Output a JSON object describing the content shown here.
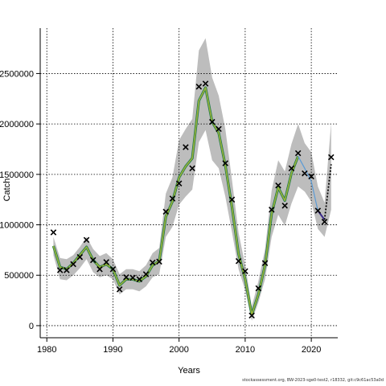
{
  "chart_data": {
    "type": "line",
    "xlabel": "Years",
    "ylabel": "Catch",
    "xlim": [
      1979,
      2024
    ],
    "ylim": [
      -120000,
      2950000
    ],
    "x_ticks": [
      1980,
      1990,
      2000,
      2010,
      2020
    ],
    "y_ticks": [
      0,
      500000,
      1000000,
      1500000,
      2000000,
      2500000
    ],
    "y_tick_labels": [
      "0",
      "500000",
      "1000000",
      "1500000",
      "2000000",
      "2500000"
    ],
    "grid": true,
    "series": [
      {
        "kind": "observed",
        "x": [
          1981,
          1982,
          1983,
          1984,
          1985,
          1986,
          1987,
          1988,
          1989,
          1990,
          1991,
          1992,
          1993,
          1994,
          1995,
          1996,
          1997,
          1998,
          1999,
          2000,
          2001,
          2002,
          2003,
          2004,
          2005,
          2006,
          2007,
          2008,
          2009,
          2010,
          2011,
          2012,
          2013,
          2014,
          2015,
          2016,
          2017,
          2018,
          2019,
          2020,
          2021,
          2022,
          2023
        ],
        "y": [
          925000,
          550000,
          550000,
          610000,
          680000,
          850000,
          650000,
          560000,
          630000,
          560000,
          360000,
          480000,
          475000,
          460000,
          510000,
          625000,
          635000,
          1130000,
          1260000,
          1410000,
          1770000,
          1560000,
          2370000,
          2400000,
          2020000,
          1950000,
          1610000,
          1250000,
          640000,
          540000,
          100000,
          370000,
          620000,
          1150000,
          1390000,
          1190000,
          1560000,
          1710000,
          1510000,
          1480000,
          1140000,
          1030000,
          1670000
        ]
      },
      {
        "kind": "fitted",
        "x": [
          1981,
          1982,
          1983,
          1984,
          1985,
          1986,
          1987,
          1988,
          1989,
          1990,
          1991,
          1992,
          1993,
          1994,
          1995,
          1996,
          1997,
          1998,
          1999,
          2000,
          2001,
          2002,
          2003,
          2004,
          2005,
          2006,
          2007,
          2008,
          2009,
          2010,
          2011,
          2012,
          2013,
          2014,
          2015,
          2016,
          2017,
          2018
        ],
        "y": [
          790000,
          580000,
          560000,
          620000,
          700000,
          780000,
          650000,
          580000,
          610000,
          560000,
          400000,
          460000,
          460000,
          440000,
          490000,
          600000,
          640000,
          1080000,
          1230000,
          1470000,
          1580000,
          1660000,
          2230000,
          2360000,
          2020000,
          1910000,
          1590000,
          1180000,
          710000,
          460000,
          110000,
          310000,
          600000,
          1110000,
          1370000,
          1240000,
          1510000,
          1680000
        ],
        "band_upper": [
          880000,
          670000,
          660000,
          700000,
          780000,
          880000,
          760000,
          690000,
          720000,
          660000,
          510000,
          560000,
          560000,
          540000,
          600000,
          720000,
          770000,
          1310000,
          1470000,
          1840000,
          1950000,
          2050000,
          2730000,
          2850000,
          2460000,
          2280000,
          1950000,
          1450000,
          920000,
          600000,
          190000,
          440000,
          760000,
          1340000,
          1640000,
          1530000,
          1800000,
          2000000
        ],
        "band_lower": [
          700000,
          460000,
          450000,
          500000,
          570000,
          660000,
          530000,
          480000,
          500000,
          460000,
          310000,
          360000,
          360000,
          340000,
          390000,
          480000,
          510000,
          880000,
          980000,
          1200000,
          1280000,
          1350000,
          1820000,
          1940000,
          1640000,
          1560000,
          1280000,
          930000,
          560000,
          350000,
          50000,
          230000,
          460000,
          880000,
          1100000,
          990000,
          1210000,
          1380000
        ]
      },
      {
        "kind": "retro",
        "x": [
          2018,
          2019,
          2020,
          2021,
          2022
        ],
        "y": [
          1680000,
          1560000,
          1430000,
          1140000,
          1050000
        ]
      },
      {
        "kind": "forecast",
        "x": [
          2022,
          2023
        ],
        "y": [
          1050000,
          1600000
        ],
        "band_upper": [
          1220000,
          2010000
        ],
        "band_lower": [
          880000,
          1150000
        ]
      }
    ],
    "band_upper_tail": {
      "x": [
        2019,
        2020,
        2021
      ],
      "y": [
        1810000,
        1720000,
        1380000
      ]
    },
    "band_lower_tail": {
      "x": [
        2019,
        2020,
        2021
      ],
      "y": [
        1330000,
        1230000,
        960000
      ]
    },
    "colors": {
      "fitted_line": "#1e7a4a",
      "fitted_overlay": "#9bb33a",
      "retro_line": "#5b9bd5",
      "retro_end": "#3b2a8a",
      "band": "#bdbdbd",
      "grid": "#000000",
      "marker": "#000000"
    }
  },
  "footer": {
    "text": "stockassessment.org, BW-2023-sge0-test2, r18332, git:c9c61ac53a0d"
  }
}
